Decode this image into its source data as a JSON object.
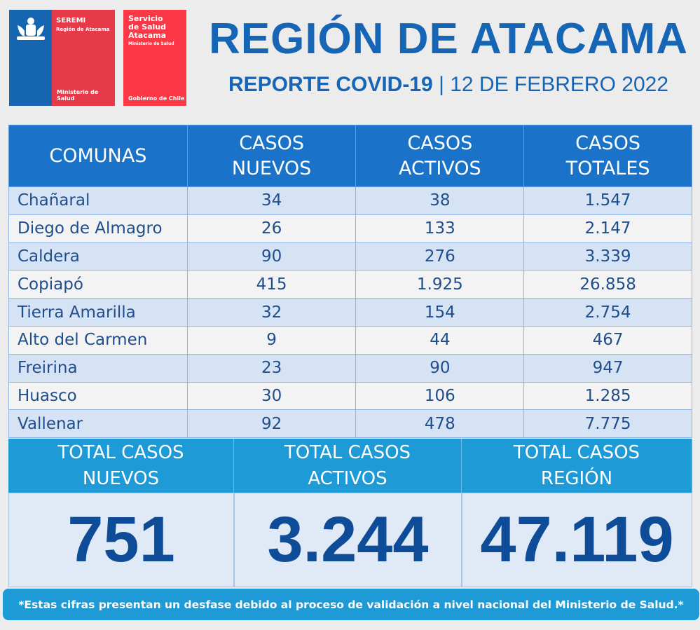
{
  "logos": {
    "seremi": {
      "title": "SEREMI",
      "region": "Región de Atacama",
      "ministry": "Ministerio de Salud"
    },
    "servicio": {
      "line1": "Servicio",
      "line2": "de Salud",
      "line3": "Atacama",
      "ministry": "Ministerio de Salud",
      "gov": "Gobierno de Chile"
    }
  },
  "header": {
    "title": "REGIÓN DE ATACAMA",
    "report": "REPORTE COVID-19",
    "separator": "|",
    "date": "12 DE FEBRERO 2022"
  },
  "table": {
    "columns": [
      {
        "l1": "COMUNAS",
        "l2": ""
      },
      {
        "l1": "CASOS",
        "l2": "NUEVOS"
      },
      {
        "l1": "CASOS",
        "l2": "ACTIVOS"
      },
      {
        "l1": "CASOS",
        "l2": "TOTALES"
      }
    ],
    "rows": [
      [
        "Chañaral",
        "34",
        "38",
        "1.547"
      ],
      [
        "Diego de Almagro",
        "26",
        "133",
        "2.147"
      ],
      [
        "Caldera",
        "90",
        "276",
        "3.339"
      ],
      [
        "Copiapó",
        "415",
        "1.925",
        "26.858"
      ],
      [
        "Tierra Amarilla",
        "32",
        "154",
        "2.754"
      ],
      [
        "Alto del Carmen",
        "9",
        "44",
        "467"
      ],
      [
        "Freirina",
        "23",
        "90",
        "947"
      ],
      [
        "Huasco",
        "30",
        "106",
        "1.285"
      ],
      [
        "Vallenar",
        "92",
        "478",
        "7.775"
      ]
    ]
  },
  "totals": [
    {
      "l1": "TOTAL CASOS",
      "l2": "NUEVOS",
      "value": "751"
    },
    {
      "l1": "TOTAL CASOS",
      "l2": "ACTIVOS",
      "value": "3.244"
    },
    {
      "l1": "TOTAL CASOS",
      "l2": "REGIÓN",
      "value": "47.119"
    }
  ],
  "footer": "*Estas cifras presentan un desfase debido al proceso de validación a nivel nacional del Ministerio de Salud.*",
  "colors": {
    "header_blue": "#1a73c8",
    "accent": "#1e9ad6",
    "text": "#1f4e8c",
    "red": "#e63a48"
  }
}
